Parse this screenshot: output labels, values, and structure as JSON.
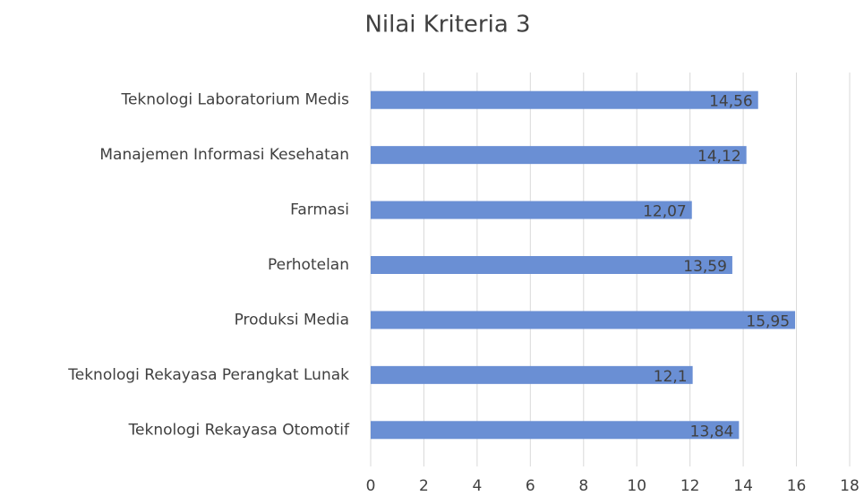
{
  "chart_data": {
    "type": "barh",
    "title": "Nilai Kriteria 3",
    "categories": [
      "Teknologi Laboratorium Medis",
      "Manajemen Informasi Kesehatan",
      "Farmasi",
      "Perhotelan",
      "Produksi Media",
      "Teknologi Rekayasa Perangkat Lunak",
      "Teknologi Rekayasa Otomotif"
    ],
    "values": [
      14.56,
      14.12,
      12.07,
      13.59,
      15.95,
      12.1,
      13.84
    ],
    "value_labels": [
      "14,56",
      "14,12",
      "12,07",
      "13,59",
      "15,95",
      "12,1",
      "13,84"
    ],
    "color": "#6a8fd4",
    "xlim": [
      0,
      18
    ],
    "xticks": [
      0,
      2,
      4,
      6,
      8,
      10,
      12,
      14,
      16,
      18
    ],
    "grid": true
  }
}
